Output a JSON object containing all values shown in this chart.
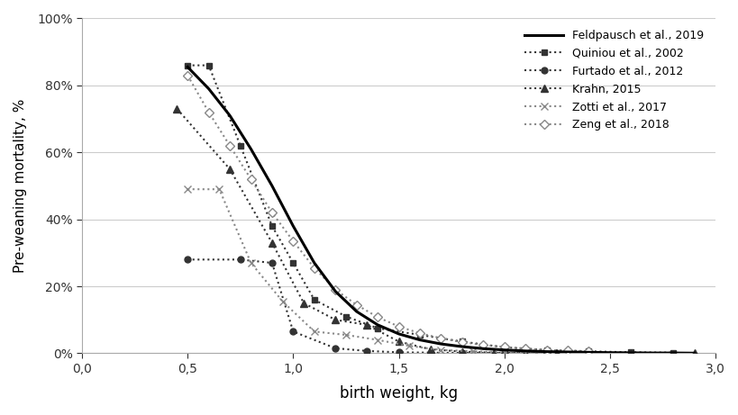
{
  "feldpausch": {
    "x": [
      0.5,
      0.6,
      0.7,
      0.8,
      0.9,
      1.0,
      1.1,
      1.2,
      1.3,
      1.4,
      1.5,
      1.6,
      1.7,
      1.8,
      1.9,
      2.0,
      2.1,
      2.2,
      2.3,
      2.4,
      2.5,
      2.6,
      2.7,
      2.8,
      2.9
    ],
    "y": [
      0.855,
      0.79,
      0.71,
      0.61,
      0.5,
      0.38,
      0.27,
      0.185,
      0.125,
      0.085,
      0.058,
      0.04,
      0.028,
      0.02,
      0.014,
      0.01,
      0.007,
      0.005,
      0.004,
      0.003,
      0.002,
      0.0015,
      0.001,
      0.001,
      0.0005
    ],
    "label": "Feldpausch et al., 2019",
    "color": "#000000",
    "linestyle": "solid",
    "linewidth": 2.2,
    "marker": null
  },
  "quiniou": {
    "x": [
      0.5,
      0.6,
      0.75,
      0.9,
      1.0,
      1.1,
      1.25,
      1.4,
      1.6,
      1.8,
      2.0,
      2.2,
      2.4,
      2.6,
      2.8
    ],
    "y": [
      0.86,
      0.86,
      0.62,
      0.38,
      0.27,
      0.16,
      0.11,
      0.075,
      0.055,
      0.035,
      0.018,
      0.01,
      0.006,
      0.003,
      0.002
    ],
    "label": "Quiniou et al., 2002",
    "color": "#333333",
    "linestyle": "dotted",
    "linewidth": 1.5,
    "marker": "s",
    "markersize": 5,
    "markerfacecolor": "#333333"
  },
  "furtado": {
    "x": [
      0.5,
      0.75,
      0.9,
      1.0,
      1.2,
      1.35,
      1.5,
      1.65,
      1.8,
      2.0,
      2.2
    ],
    "y": [
      0.28,
      0.28,
      0.27,
      0.065,
      0.015,
      0.007,
      0.003,
      0.002,
      0.001,
      0.001,
      0.001
    ],
    "label": "Furtado et al., 2012",
    "color": "#333333",
    "linestyle": "dotted",
    "linewidth": 1.5,
    "marker": "o",
    "markersize": 5,
    "markerfacecolor": "#333333"
  },
  "krahn": {
    "x": [
      0.45,
      0.7,
      0.9,
      1.05,
      1.2,
      1.35,
      1.5,
      1.65,
      1.8,
      1.95,
      2.1,
      2.25,
      2.4,
      2.6,
      2.9
    ],
    "y": [
      0.73,
      0.55,
      0.33,
      0.15,
      0.1,
      0.085,
      0.035,
      0.012,
      0.005,
      0.002,
      0.001,
      0.001,
      0.001,
      0.0005,
      0.0
    ],
    "label": "Krahn, 2015",
    "color": "#333333",
    "linestyle": "dotted",
    "linewidth": 1.5,
    "marker": "^",
    "markersize": 6,
    "markerfacecolor": "#333333"
  },
  "zotti": {
    "x": [
      0.5,
      0.65,
      0.8,
      0.95,
      1.1,
      1.25,
      1.4,
      1.55,
      1.7,
      1.85,
      2.0,
      2.15
    ],
    "y": [
      0.49,
      0.49,
      0.27,
      0.155,
      0.065,
      0.055,
      0.04,
      0.022,
      0.01,
      0.006,
      0.003,
      0.001
    ],
    "label": "Zotti et al., 2017",
    "color": "#888888",
    "linestyle": "dotted",
    "linewidth": 1.5,
    "marker": "x",
    "markersize": 6,
    "markerfacecolor": "#888888"
  },
  "zeng": {
    "x": [
      0.5,
      0.6,
      0.7,
      0.8,
      0.9,
      1.0,
      1.1,
      1.2,
      1.3,
      1.4,
      1.5,
      1.6,
      1.7,
      1.8,
      1.9,
      2.0,
      2.1,
      2.2,
      2.3,
      2.4
    ],
    "y": [
      0.83,
      0.72,
      0.62,
      0.52,
      0.42,
      0.335,
      0.255,
      0.19,
      0.145,
      0.108,
      0.08,
      0.06,
      0.045,
      0.033,
      0.025,
      0.019,
      0.014,
      0.01,
      0.008,
      0.006
    ],
    "label": "Zeng et al., 2018",
    "color": "#888888",
    "linestyle": "dotted",
    "linewidth": 1.5,
    "marker": "D",
    "markersize": 5,
    "markerfacecolor": "white",
    "markeredgecolor": "#888888"
  },
  "xlabel": "birth weight, kg",
  "ylabel": "Pre-weaning mortality, %",
  "xlim": [
    0.0,
    3.0
  ],
  "ylim": [
    0.0,
    1.0
  ],
  "xticks": [
    0.0,
    0.5,
    1.0,
    1.5,
    2.0,
    2.5,
    3.0
  ],
  "yticks": [
    0.0,
    0.2,
    0.4,
    0.6,
    0.8,
    1.0
  ],
  "background_color": "#ffffff",
  "grid_color": "#cccccc"
}
